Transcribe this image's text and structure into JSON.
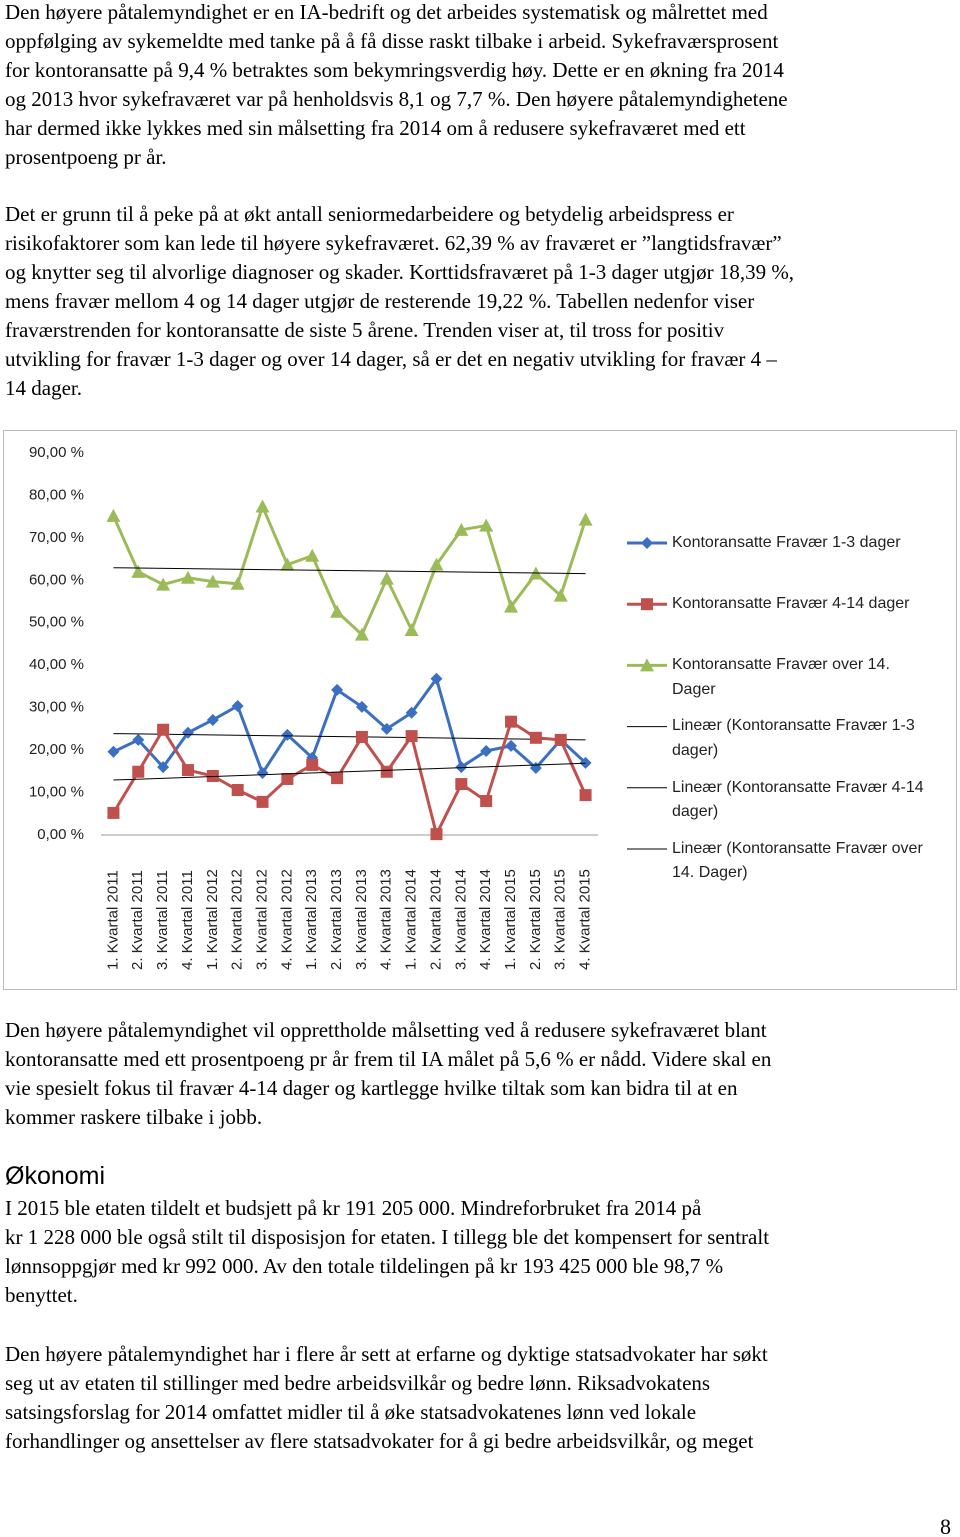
{
  "intro": [
    [
      "Den høyere påtalemyndighet er en IA-bedrift og det arbeides systematisk og målrettet med",
      "oppfølging av sykemeldte med tanke på å få disse raskt tilbake i arbeid. Sykefraværsprosent",
      "for kontoransatte på 9,4 % betraktes som bekymringsverdig høy. Dette er en økning fra 2014",
      "og 2013 hvor sykefraværet var på henholdsvis 8,1 og 7,7 %. Den høyere påtalemyndighetene",
      "har dermed ikke lykkes med sin målsetting fra 2014 om å redusere sykefraværet med ett",
      "prosentpoeng pr år."
    ],
    [
      "Det er grunn til å peke på at økt antall seniormedarbeidere og betydelig arbeidspress er",
      "risikofaktorer som kan lede til høyere sykefraværet. 62,39 % av fraværet er ”langtidsfravær”",
      "og knytter seg til alvorlige diagnoser og skader. Korttidsfraværet på 1-3 dager utgjør 18,39 %,",
      "mens fravær mellom 4 og 14 dager utgjør de resterende 19,22 %. Tabellen nedenfor viser",
      "fraværstrenden for kontoransatte de siste 5 årene. Trenden viser at, til tross for positiv",
      "utvikling for fravær 1-3 dager og over 14 dager, så er det en negativ utvikling for fravær 4 –",
      "14 dager."
    ]
  ],
  "chart_data": {
    "type": "line",
    "categories": [
      "1. Kvartal 2011",
      "2. Kvartal 2011",
      "3. Kvartal 2011",
      "4. Kvartal 2011",
      "1. Kvartal 2012",
      "2. Kvartal 2012",
      "3. Kvartal 2012",
      "4. Kvartal 2012",
      "1. Kvartal 2013",
      "2. Kvartal 2013",
      "3. Kvartal 2013",
      "4. Kvartal 2013",
      "1. Kvartal 2014",
      "2. Kvartal 2014",
      "3. Kvartal 2014",
      "4. Kvartal 2014",
      "1. Kvartal 2015",
      "2. Kvartal 2015",
      "3. Kvartal 2015",
      "4. Kvartal 2015"
    ],
    "series": [
      {
        "name": "Kontoransatte Fravær 1-3 dager",
        "color": "#3b6fc2",
        "marker": "diamond",
        "values": [
          19.6,
          22.4,
          16.0,
          24.1,
          27.1,
          30.4,
          14.6,
          23.6,
          18.2,
          34.2,
          30.2,
          25.0,
          28.8,
          36.8,
          16.0,
          19.8,
          21.0,
          15.8,
          22.4,
          17.0
        ]
      },
      {
        "name": "Kontoransatte Fravær 4-14 dager",
        "color": "#c0504d",
        "marker": "square",
        "values": [
          5.2,
          14.9,
          24.8,
          15.3,
          13.9,
          10.6,
          7.8,
          13.2,
          16.5,
          13.4,
          23.1,
          14.9,
          23.3,
          0.2,
          12.0,
          8.0,
          26.7,
          22.9,
          22.4,
          9.4
        ]
      },
      {
        "name": "Kontoransatte Fravær over 14. Dager",
        "color": "#9bbb59",
        "marker": "triangle",
        "values": [
          75.2,
          62.0,
          59.0,
          60.6,
          59.7,
          59.2,
          77.4,
          63.7,
          65.8,
          52.6,
          47.2,
          60.4,
          48.3,
          63.7,
          71.9,
          72.9,
          53.8,
          61.6,
          56.4,
          74.3
        ]
      }
    ],
    "trendlines": [
      {
        "name": "Lineær (Kontoransatte Fravær 1-3 dager)",
        "color": "#000000"
      },
      {
        "name": "Lineær (Kontoransatte Fravær 4-14 dager)",
        "color": "#000000"
      },
      {
        "name": "Lineær (Kontoransatte Fravær over 14. Dager)",
        "color": "#000000"
      }
    ],
    "ylim": [
      0,
      90
    ],
    "yticks": [
      {
        "value": 0,
        "label": "0,00 %"
      },
      {
        "value": 10,
        "label": "10,00 %"
      },
      {
        "value": 20,
        "label": "20,00 %"
      },
      {
        "value": 30,
        "label": "30,00 %"
      },
      {
        "value": 40,
        "label": "40,00 %"
      },
      {
        "value": 50,
        "label": "50,00 %"
      },
      {
        "value": 60,
        "label": "60,00 %"
      },
      {
        "value": 70,
        "label": "70,00 %"
      },
      {
        "value": 80,
        "label": "80,00 %"
      },
      {
        "value": 90,
        "label": "90,00 %"
      }
    ],
    "grid": false,
    "legend": "right"
  },
  "after_chart": [
    "Den høyere påtalemyndighet vil opprettholde målsetting ved å redusere sykefraværet blant",
    "kontoransatte med ett prosentpoeng pr år frem til IA målet på 5,6 % er nådd. Videre skal en",
    "vie spesielt fokus til fravær 4-14 dager og kartlegge hvilke tiltak som kan bidra til at en",
    "kommer raskere tilbake i jobb."
  ],
  "heading": "Økonomi",
  "economy": [
    [
      "I 2015 ble etaten tildelt et budsjett på kr 191 205 000. Mindreforbruket fra 2014 på",
      "kr 1 228 000 ble også stilt til disposisjon for etaten. I tillegg ble det kompensert for sentralt",
      "lønnsoppgjør med kr 992 000. Av den totale tildelingen på kr 193 425 000 ble 98,7 %",
      "benyttet."
    ],
    [
      "Den høyere påtalemyndighet har i flere år sett at erfarne og dyktige statsadvokater har søkt",
      "seg ut av etaten til stillinger med bedre arbeidsvilkår og bedre lønn. Riksadvokatens",
      "satsingsforslag for 2014 omfattet midler til å øke statsadvokatenes lønn ved lokale",
      "forhandlinger og ansettelser av flere statsadvokater for å gi bedre arbeidsvilkår, og meget"
    ]
  ],
  "page_number": "8"
}
